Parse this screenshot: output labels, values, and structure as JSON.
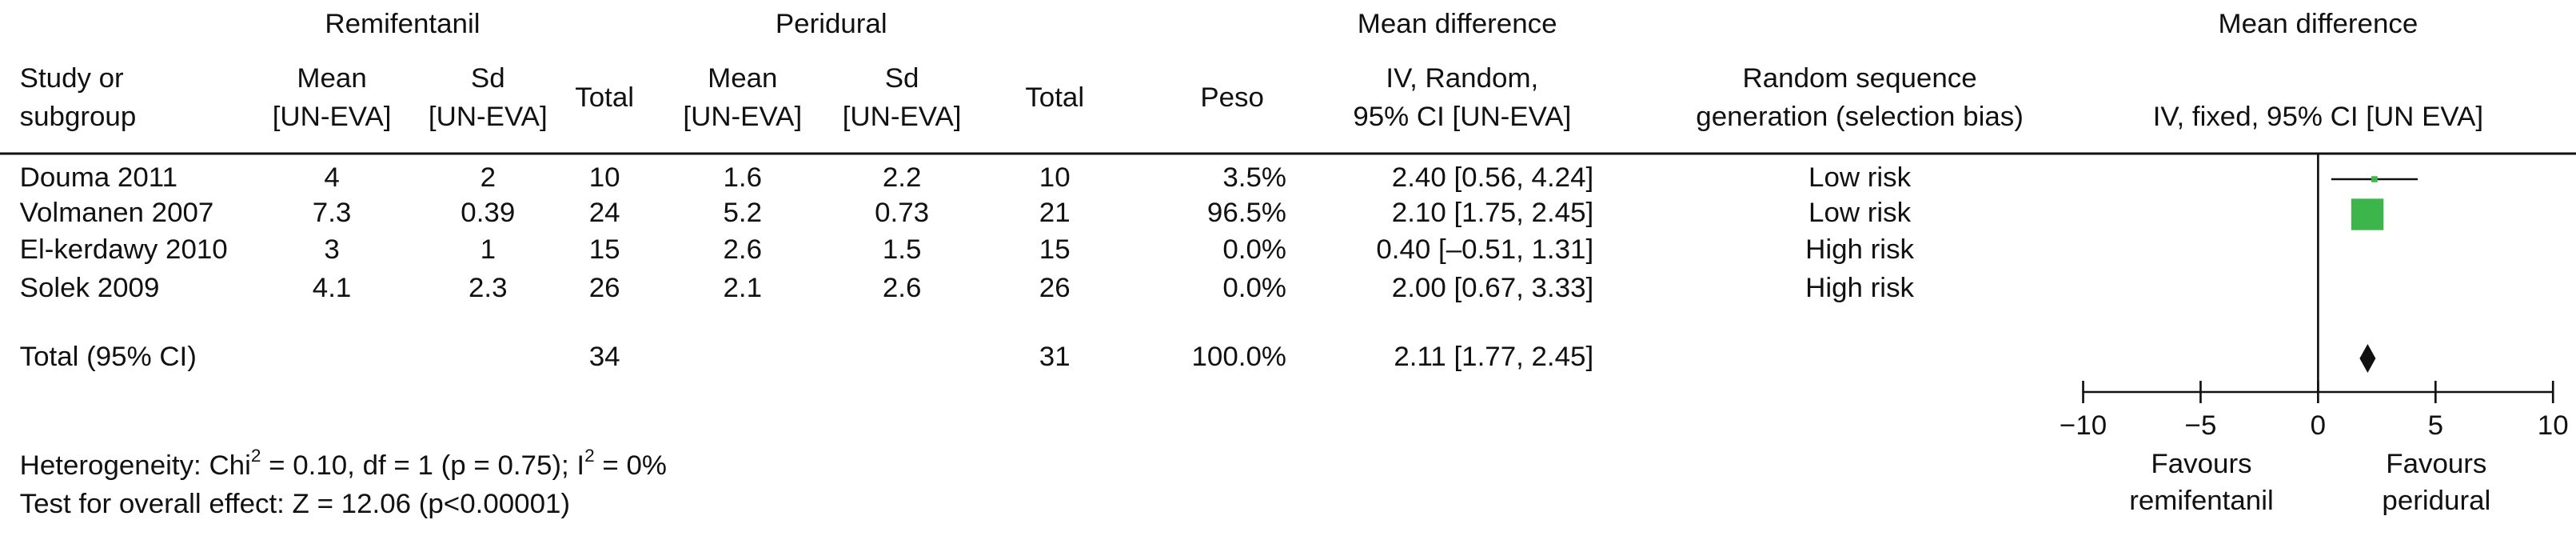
{
  "chart_data": {
    "type": "forest",
    "group_headers": [
      "Remifentanil",
      "Peridural",
      "Mean difference",
      "Mean difference"
    ],
    "column_headers": {
      "study": [
        "Study or",
        "subgroup"
      ],
      "remi_mean": [
        "Mean",
        "[UN-EVA]"
      ],
      "remi_sd": [
        "Sd",
        "[UN-EVA]"
      ],
      "remi_total": [
        "Total"
      ],
      "peri_mean": [
        "Mean",
        "[UN-EVA]"
      ],
      "peri_sd": [
        "Sd",
        "[UN-EVA]"
      ],
      "peri_total": [
        "Total"
      ],
      "weight": [
        "Peso"
      ],
      "md": [
        "IV, Random,",
        "95% CI [UN-EVA]"
      ],
      "bias": [
        "Random sequence",
        "generation (selection bias)"
      ],
      "plot": [
        "IV, fixed, 95% CI [UN EVA]"
      ]
    },
    "rows": [
      {
        "study": "Douma 2011",
        "remi_mean": 4,
        "remi_sd": 2,
        "remi_total": 10,
        "peri_mean": 1.6,
        "peri_sd": 2.2,
        "peri_total": 10,
        "weight": {
          "value": 3.5,
          "label": "3.5%"
        },
        "md": {
          "value": 2.4,
          "ci": [
            0.56,
            4.24
          ],
          "label": "2.40 [0.56, 4.24]"
        },
        "bias": "Low risk"
      },
      {
        "study": "Volmanen 2007",
        "remi_mean": 7.3,
        "remi_sd": 0.39,
        "remi_total": 24,
        "peri_mean": 5.2,
        "peri_sd": 0.73,
        "peri_total": 21,
        "weight": {
          "value": 96.5,
          "label": "96.5%"
        },
        "md": {
          "value": 2.1,
          "ci": [
            1.75,
            2.45
          ],
          "label": "2.10 [1.75, 2.45]"
        },
        "bias": "Low risk"
      },
      {
        "study": "El-kerdawy 2010",
        "remi_mean": 3,
        "remi_sd": 1,
        "remi_total": 15,
        "peri_mean": 2.6,
        "peri_sd": 1.5,
        "peri_total": 15,
        "weight": {
          "value": 0,
          "label": "0.0%"
        },
        "md": {
          "value": 0.4,
          "ci": [
            -0.51,
            1.31
          ],
          "label": "0.40 [–0.51, 1.31]"
        },
        "bias": "High risk"
      },
      {
        "study": "Solek 2009",
        "remi_mean": 4.1,
        "remi_sd": 2.3,
        "remi_total": 26,
        "peri_mean": 2.1,
        "peri_sd": 2.6,
        "peri_total": 26,
        "weight": {
          "value": 0,
          "label": "0.0%"
        },
        "md": {
          "value": 2,
          "ci": [
            0.67,
            3.33
          ],
          "label": "2.00 [0.67, 3.33]"
        },
        "bias": "High risk"
      }
    ],
    "total": {
      "study": "Total (95% CI)",
      "remi_total": 34,
      "peri_total": 31,
      "weight": {
        "value": 100,
        "label": "100.0%"
      },
      "md": {
        "value": 2.11,
        "ci": [
          1.77,
          2.45
        ],
        "label": "2.11 [1.77, 2.45]"
      }
    },
    "heterogeneity": [
      "Heterogeneity: Chi",
      "2",
      " = 0.10, df = 1 (p = 0.75); I",
      "2",
      " = 0%"
    ],
    "overall_effect": "Test for overall effect: Z = 12.06 (p<0.00001)",
    "xlim": [
      -10,
      10
    ],
    "xticks": [
      {
        "value": -10,
        "label": "−10"
      },
      {
        "value": -5,
        "label": "−5"
      },
      0,
      5,
      10
    ],
    "favours_left": [
      "Favours",
      "remifentanil"
    ],
    "favours_right": [
      "Favours",
      "peridural"
    ],
    "square_color": "#3cb54a",
    "diamond_color": "#111111"
  }
}
